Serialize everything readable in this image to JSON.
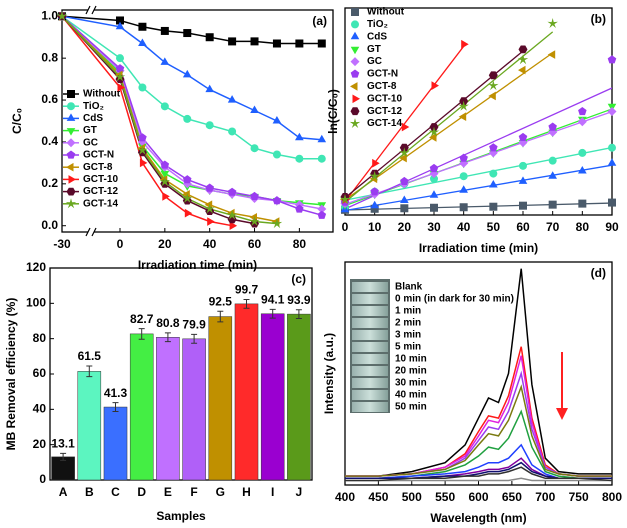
{
  "chart_data": [
    {
      "type": "line",
      "panel_label": "(a)",
      "x_label": "Irradiation time (min)",
      "y_label": "C/C₀",
      "axis_break": true,
      "x": [
        -30,
        0,
        10,
        20,
        30,
        40,
        50,
        60,
        70,
        80,
        90
      ],
      "xlim": [
        -30,
        95
      ],
      "xticks": [
        -30,
        0,
        20,
        40,
        60,
        80
      ],
      "ylim": [
        -0.03,
        1.03
      ],
      "yticks": [
        {
          "value": 0,
          "label": "0.0"
        },
        0.2,
        0.4,
        0.6,
        0.8,
        {
          "value": 1,
          "label": "1.0"
        }
      ],
      "series": [
        {
          "name": "Without",
          "color": "#000000",
          "marker": "square",
          "values": [
            1.0,
            0.98,
            0.95,
            0.93,
            0.92,
            0.9,
            0.88,
            0.88,
            0.87,
            0.87,
            0.87
          ]
        },
        {
          "name": "TiO₂",
          "color": "#3fe6b4",
          "marker": "circle",
          "values": [
            1.0,
            0.8,
            0.66,
            0.57,
            0.51,
            0.48,
            0.45,
            0.37,
            0.34,
            0.32,
            0.32
          ]
        },
        {
          "name": "CdS",
          "color": "#1f5fff",
          "marker": "triangle",
          "values": [
            1.0,
            0.95,
            0.87,
            0.78,
            0.72,
            0.65,
            0.6,
            0.55,
            0.5,
            0.42,
            0.41
          ]
        },
        {
          "name": "GT",
          "color": "#33ee33",
          "marker": "triangle-down",
          "values": [
            1.0,
            0.73,
            0.38,
            0.25,
            0.19,
            0.17,
            0.15,
            0.14,
            0.12,
            0.11,
            0.1
          ]
        },
        {
          "name": "GC",
          "color": "#c070ff",
          "marker": "diamond",
          "values": [
            1.0,
            0.74,
            0.4,
            0.28,
            0.2,
            0.17,
            0.15,
            0.13,
            0.12,
            0.1,
            0.08
          ]
        },
        {
          "name": "GCT-N",
          "color": "#9a3cf0",
          "marker": "pentagon",
          "values": [
            1.0,
            0.75,
            0.42,
            0.29,
            0.22,
            0.18,
            0.16,
            0.14,
            0.12,
            0.08,
            0.05
          ]
        },
        {
          "name": "GCT-8",
          "color": "#c09000",
          "marker": "triangle-left",
          "values": [
            1.0,
            0.72,
            0.37,
            0.22,
            0.15,
            0.1,
            0.06,
            0.04,
            0.02,
            null,
            null
          ]
        },
        {
          "name": "GCT-10",
          "color": "#ff1a1a",
          "marker": "triangle-right",
          "values": [
            1.0,
            0.66,
            0.3,
            0.14,
            0.06,
            0.02,
            0.0,
            null,
            null,
            null,
            null
          ]
        },
        {
          "name": "GCT-12",
          "color": "#5a0a2a",
          "marker": "hexagon",
          "values": [
            1.0,
            0.7,
            0.35,
            0.2,
            0.12,
            0.07,
            0.03,
            0.01,
            null,
            null,
            null
          ]
        },
        {
          "name": "GCT-14",
          "color": "#6aa820",
          "marker": "star",
          "values": [
            1.0,
            0.71,
            0.36,
            0.21,
            0.13,
            0.08,
            0.05,
            0.02,
            0.01,
            null,
            null
          ]
        }
      ]
    },
    {
      "type": "scatter",
      "panel_label": "(b)",
      "x_label": "Irradiation time (min)",
      "y_label": "ln(C/C₀)",
      "x": [
        0,
        10,
        20,
        30,
        40,
        50,
        60,
        70,
        80,
        90
      ],
      "xlim": [
        0,
        90
      ],
      "xticks": [
        0,
        10,
        20,
        30,
        40,
        50,
        60,
        70,
        80,
        90
      ],
      "ylim": [
        -0.1,
        3.9
      ],
      "series": [
        {
          "name": "Without",
          "color": "#4a5a6a",
          "marker": "square",
          "values": [
            0,
            0.02,
            0.03,
            0.04,
            0.05,
            0.06,
            0.08,
            0.1,
            0.12,
            0.14
          ]
        },
        {
          "name": "TiO₂",
          "color": "#3fe6b4",
          "marker": "circle",
          "values": [
            0.05,
            0.35,
            0.5,
            0.6,
            0.65,
            0.7,
            0.85,
            0.95,
            1.1,
            1.2
          ]
        },
        {
          "name": "CdS",
          "color": "#1f5fff",
          "marker": "triangle",
          "values": [
            0,
            0.08,
            0.18,
            0.28,
            0.38,
            0.48,
            0.55,
            0.65,
            0.75,
            0.9
          ]
        },
        {
          "name": "GT",
          "color": "#33ee33",
          "marker": "triangle-down",
          "values": [
            0.1,
            0.3,
            0.5,
            0.7,
            0.9,
            1.1,
            1.3,
            1.5,
            1.75,
            2.0
          ]
        },
        {
          "name": "GC",
          "color": "#c070ff",
          "marker": "diamond",
          "values": [
            0.12,
            0.3,
            0.5,
            0.7,
            0.9,
            1.1,
            1.3,
            1.5,
            1.7,
            1.9
          ]
        },
        {
          "name": "GCT-N",
          "color": "#9a3cf0",
          "marker": "pentagon",
          "values": [
            0.15,
            0.35,
            0.55,
            0.8,
            1.0,
            1.2,
            1.4,
            1.6,
            1.9,
            2.9
          ]
        },
        {
          "name": "GCT-8",
          "color": "#c09000",
          "marker": "triangle-left",
          "values": [
            0.2,
            0.6,
            1.0,
            1.4,
            1.8,
            2.2,
            2.7,
            3.0,
            null,
            null
          ]
        },
        {
          "name": "GCT-10",
          "color": "#ff1a1a",
          "marker": "triangle-right",
          "values": [
            0.2,
            0.9,
            1.6,
            2.4,
            3.2,
            null,
            null,
            null,
            null,
            null
          ]
        },
        {
          "name": "GCT-12",
          "color": "#5a0a2a",
          "marker": "hexagon",
          "values": [
            0.25,
            0.7,
            1.2,
            1.6,
            2.1,
            2.6,
            3.1,
            null,
            null,
            null
          ]
        },
        {
          "name": "GCT-14",
          "color": "#6aa820",
          "marker": "star",
          "values": [
            0.2,
            0.65,
            1.1,
            1.5,
            2.0,
            2.4,
            2.9,
            3.6,
            null,
            null
          ]
        }
      ]
    },
    {
      "type": "bar",
      "panel_label": "(c)",
      "x_label": "Samples",
      "y_label": "MB Removal efficiency (%)",
      "categories": [
        "A",
        "B",
        "C",
        "D",
        "E",
        "F",
        "G",
        "H",
        "I",
        "J"
      ],
      "values": [
        13.1,
        61.5,
        41.3,
        82.7,
        80.8,
        79.9,
        92.5,
        99.7,
        94.1,
        93.9
      ],
      "errors": [
        2,
        3,
        2.5,
        3,
        2.5,
        2.5,
        3,
        2.5,
        2.5,
        2.5
      ],
      "colors": [
        "#111111",
        "#5cf5c0",
        "#3a6fff",
        "#44ee44",
        "#c070ff",
        "#b060f8",
        "#c09000",
        "#ff2a2a",
        "#9a00d0",
        "#5a9a1a"
      ],
      "ylim": [
        0,
        120
      ],
      "yticks": [
        0,
        20,
        40,
        60,
        80,
        100,
        120
      ]
    },
    {
      "type": "line",
      "panel_label": "(d)",
      "x_label": "Wavelength (nm)",
      "y_label": "Intensity (a.u.)",
      "x": [
        400,
        450,
        500,
        550,
        580,
        600,
        615,
        630,
        645,
        664,
        680,
        700,
        720,
        750,
        800
      ],
      "xlim": [
        400,
        800
      ],
      "xticks": [
        400,
        450,
        500,
        550,
        600,
        650,
        700,
        750,
        800
      ],
      "ylim": [
        0,
        100
      ],
      "series": [
        {
          "name": "Blank",
          "color": "#888888",
          "values": [
            2,
            2,
            2,
            2,
            2,
            2,
            2,
            2,
            2,
            3,
            2,
            2,
            2,
            2,
            2
          ]
        },
        {
          "name": "0 min (in dark for 30 min)",
          "color": "#000000",
          "values": [
            4,
            4,
            6,
            10,
            18,
            30,
            39,
            37,
            50,
            97,
            45,
            12,
            6,
            5,
            5
          ]
        },
        {
          "name": "1 min",
          "color": "#ff1a1a",
          "values": [
            4,
            4,
            5,
            8,
            14,
            24,
            31,
            30,
            40,
            62,
            30,
            9,
            5,
            4,
            4
          ]
        },
        {
          "name": "2 min",
          "color": "#e020e0",
          "values": [
            4,
            4,
            5,
            8,
            13,
            22,
            29,
            28,
            37,
            58,
            28,
            8,
            5,
            4,
            4
          ]
        },
        {
          "name": "3 min",
          "color": "#9a3cf0",
          "values": [
            4,
            4,
            5,
            7,
            12,
            20,
            26,
            25,
            33,
            50,
            25,
            8,
            5,
            4,
            4
          ]
        },
        {
          "name": "5 min",
          "color": "#7a7a10",
          "values": [
            4,
            4,
            5,
            7,
            11,
            18,
            23,
            22,
            29,
            44,
            22,
            7,
            5,
            4,
            4
          ]
        },
        {
          "name": "10 min",
          "color": "#20a040",
          "values": [
            3,
            3,
            4,
            6,
            9,
            13,
            17,
            16,
            21,
            33,
            17,
            6,
            4,
            3,
            3
          ]
        },
        {
          "name": "20 min",
          "color": "#2040ff",
          "values": [
            3,
            3,
            4,
            5,
            6,
            8,
            10,
            10,
            12,
            18,
            9,
            5,
            3,
            3,
            3
          ]
        },
        {
          "name": "30 min",
          "color": "#8000a0",
          "values": [
            3,
            3,
            3,
            4,
            5,
            6,
            7,
            7,
            8,
            12,
            7,
            4,
            3,
            3,
            3
          ]
        },
        {
          "name": "40 min",
          "color": "#101070",
          "values": [
            3,
            3,
            3,
            4,
            4,
            5,
            6,
            6,
            7,
            10,
            6,
            4,
            3,
            3,
            3
          ]
        },
        {
          "name": "50 min",
          "color": "#303030",
          "values": [
            2,
            2,
            3,
            3,
            4,
            4,
            5,
            5,
            6,
            8,
            5,
            3,
            3,
            3,
            2
          ]
        }
      ]
    }
  ]
}
